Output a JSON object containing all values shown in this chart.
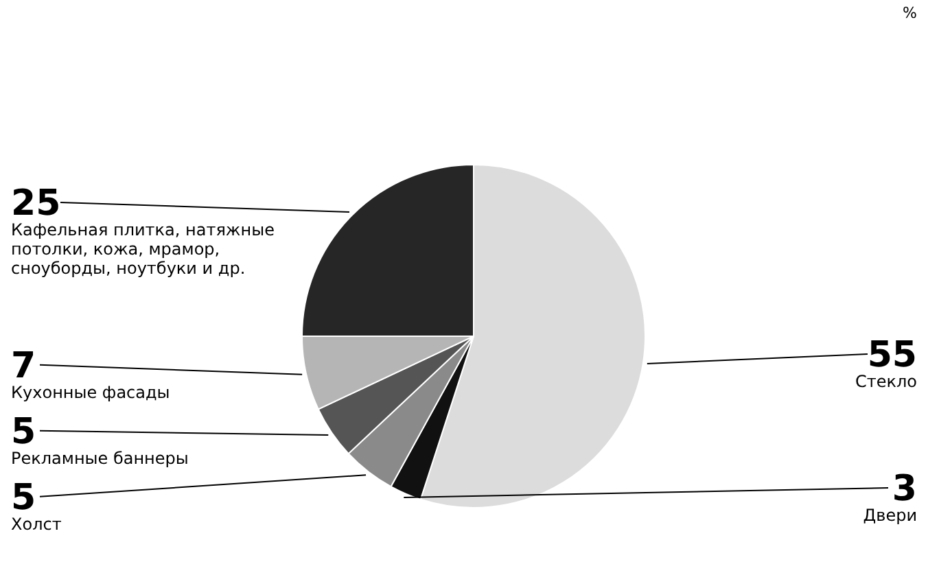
{
  "chart_data": {
    "type": "pie",
    "categories": [
      "Стекло",
      "Двери",
      "Холст",
      "Рекламные баннеры",
      "Кухонные фасады",
      "Кафельная плитка, натяжные потолки, кожа, мрамор, сноуборды, ноутбуки и др."
    ],
    "values": [
      55,
      3,
      5,
      5,
      7,
      25
    ],
    "colors": [
      "#dcdcdc",
      "#111111",
      "#8a8a8a",
      "#555555",
      "#b5b5b5",
      "#262626"
    ],
    "data_labels": true,
    "annotations": [
      "%"
    ]
  }
}
